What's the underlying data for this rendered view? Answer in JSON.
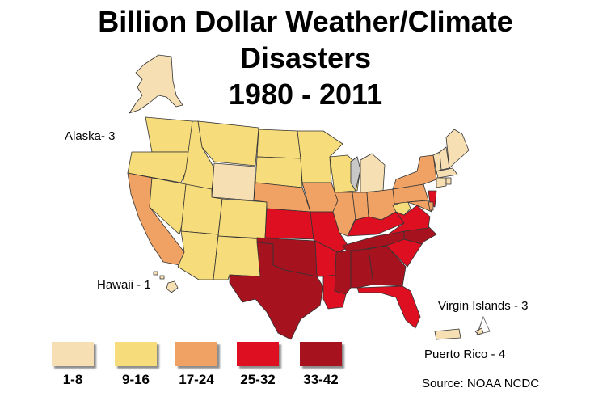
{
  "title_lines": [
    "Billion Dollar Weather/Climate",
    "Disasters",
    "1980 - 2011"
  ],
  "labels": {
    "alaska": "Alaska- 3",
    "hawaii": "Hawaii - 1",
    "virgin_islands": "Virgin Islands - 3",
    "puerto_rico": "Puerto Rico - 4"
  },
  "source": "Source: NOAA NCDC",
  "legend": [
    {
      "range": "1-8",
      "color": "#f7dfb4"
    },
    {
      "range": "9-16",
      "color": "#f6dc7a"
    },
    {
      "range": "17-24",
      "color": "#f0a264"
    },
    {
      "range": "25-32",
      "color": "#df0f22"
    },
    {
      "range": "33-42",
      "color": "#a6131f"
    }
  ],
  "colors": {
    "class1": "#f7dfb4",
    "class2": "#f6dc7a",
    "class3": "#f0a264",
    "class4": "#df0f22",
    "class5": "#a6131f",
    "no_data": "#c8c8c8",
    "border": "#333333"
  }
}
